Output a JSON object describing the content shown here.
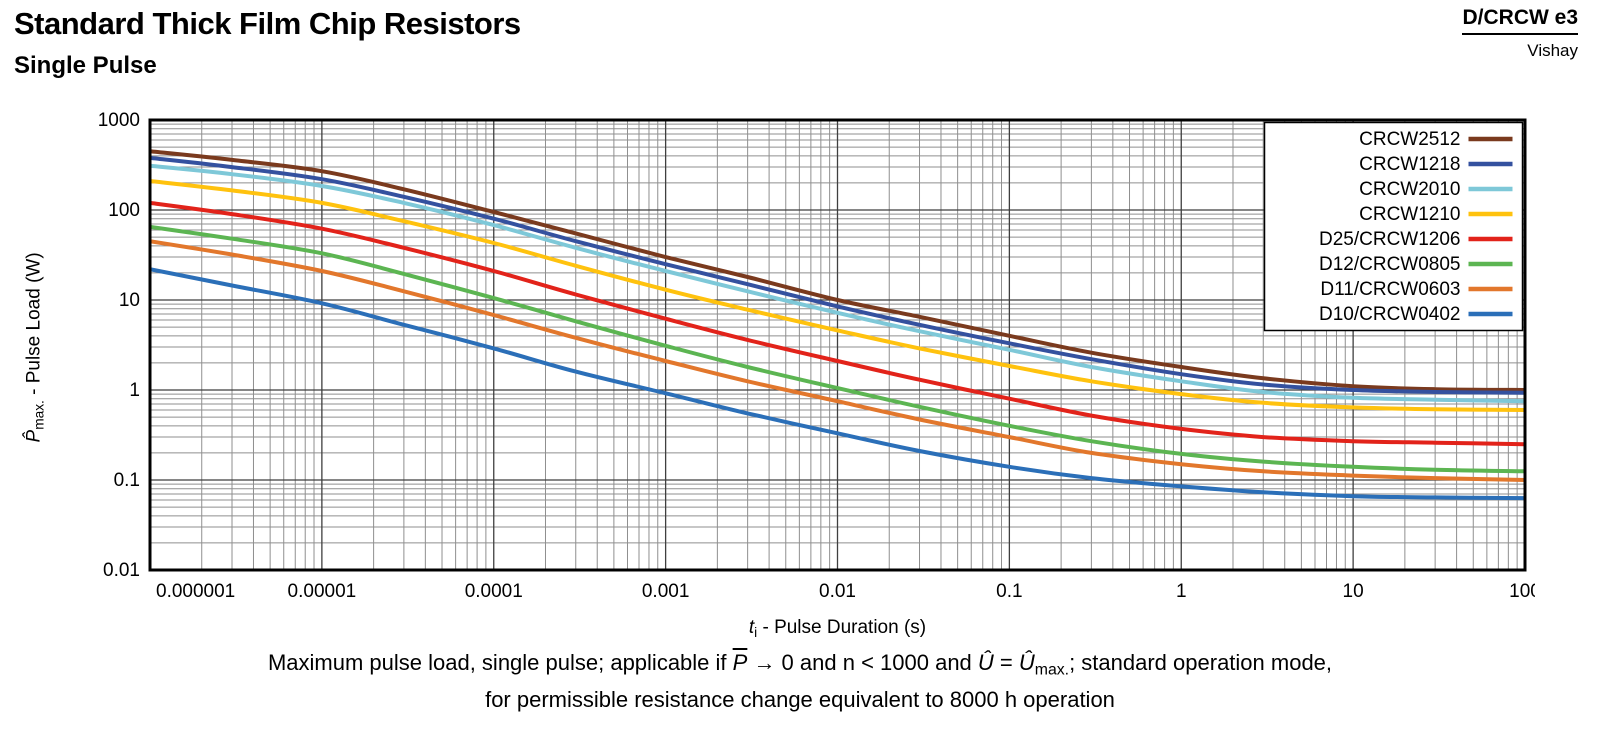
{
  "header": {
    "title": "Standard Thick Film Chip Resistors",
    "subtitle": "Single Pulse",
    "doc_ref": "D/CRCW e3",
    "brand": "Vishay"
  },
  "chart_data": {
    "type": "line",
    "x_scale": "log",
    "y_scale": "log",
    "xlim": [
      1e-06,
      100
    ],
    "ylim": [
      0.01,
      1000
    ],
    "grid": "log major and minor, on",
    "grid_minor_color": "#8F8F8F",
    "grid_major_color": "#3F3F3F",
    "legend_position": "top-right inside",
    "xlabel_var": "t",
    "xlabel_sub": "i",
    "xlabel_rest": " - Pulse Duration (s)",
    "ylabel_var": "P̂",
    "ylabel_sub": "max.",
    "ylabel_rest": " - Pulse Load (W)",
    "x_ticks": [
      1e-06,
      1e-05,
      0.0001,
      0.001,
      0.01,
      0.1,
      1,
      10,
      100
    ],
    "x_tick_labels": [
      "0.000001",
      "0.00001",
      "0.0001",
      "0.001",
      "0.01",
      "0.1",
      "1",
      "10",
      "100"
    ],
    "y_ticks": [
      0.01,
      0.1,
      1,
      10,
      100,
      1000
    ],
    "y_tick_labels": [
      "0.01",
      "0.1",
      "1",
      "10",
      "100",
      "1000"
    ],
    "x": [
      1e-06,
      3e-06,
      1e-05,
      3e-05,
      0.0001,
      0.0003,
      0.001,
      0.003,
      0.01,
      0.03,
      0.1,
      0.3,
      1,
      3,
      10,
      30,
      100
    ],
    "series": [
      {
        "name": "CRCW2512",
        "color": "#7A3A1E",
        "values": [
          450,
          360,
          270,
          170,
          95,
          55,
          30,
          18,
          10,
          6.5,
          4,
          2.6,
          1.8,
          1.35,
          1.1,
          1.02,
          1.0
        ]
      },
      {
        "name": "CRCW1218",
        "color": "#34519F",
        "values": [
          380,
          300,
          220,
          140,
          80,
          45,
          25,
          15,
          8.5,
          5.3,
          3.3,
          2.2,
          1.5,
          1.15,
          1.0,
          0.95,
          0.93
        ]
      },
      {
        "name": "CRCW2010",
        "color": "#7EC8D8",
        "values": [
          310,
          250,
          185,
          120,
          68,
          38,
          21,
          12.5,
          7.2,
          4.5,
          2.8,
          1.8,
          1.25,
          0.95,
          0.82,
          0.78,
          0.75
        ]
      },
      {
        "name": "CRCW1210",
        "color": "#FFC20E",
        "values": [
          210,
          165,
          120,
          75,
          43,
          24,
          13,
          7.8,
          4.6,
          2.9,
          1.85,
          1.25,
          0.9,
          0.72,
          0.64,
          0.61,
          0.6
        ]
      },
      {
        "name": "D25/CRCW1206",
        "color": "#E2231A",
        "values": [
          120,
          90,
          62,
          38,
          21,
          11.5,
          6.2,
          3.6,
          2.1,
          1.3,
          0.8,
          0.52,
          0.37,
          0.3,
          0.27,
          0.26,
          0.25
        ]
      },
      {
        "name": "D12/CRCW0805",
        "color": "#5CB552",
        "values": [
          65,
          48,
          33,
          19.5,
          10.5,
          5.8,
          3.1,
          1.8,
          1.05,
          0.65,
          0.4,
          0.27,
          0.195,
          0.16,
          0.14,
          0.13,
          0.125
        ]
      },
      {
        "name": "D11/CRCW0603",
        "color": "#E2772C",
        "values": [
          45,
          32,
          21,
          12.5,
          6.8,
          3.8,
          2.1,
          1.25,
          0.75,
          0.47,
          0.3,
          0.2,
          0.15,
          0.125,
          0.112,
          0.105,
          0.1
        ]
      },
      {
        "name": "D10/CRCW0402",
        "color": "#2B6FB8",
        "values": [
          22,
          14.5,
          9.2,
          5.3,
          2.9,
          1.6,
          0.92,
          0.55,
          0.33,
          0.21,
          0.14,
          0.105,
          0.085,
          0.073,
          0.066,
          0.064,
          0.063
        ]
      }
    ]
  },
  "caption": {
    "part1": "Maximum pulse load, single pulse; applicable if ",
    "pbar": "P",
    "part2": " → 0 and n < 1000 and ",
    "uhat1": "Û",
    "part3": " = ",
    "uhat2": "Û",
    "usub": "max.",
    "part4": "; standard operation mode,",
    "line2": "for permissible resistance change equivalent to 8000 h operation"
  }
}
